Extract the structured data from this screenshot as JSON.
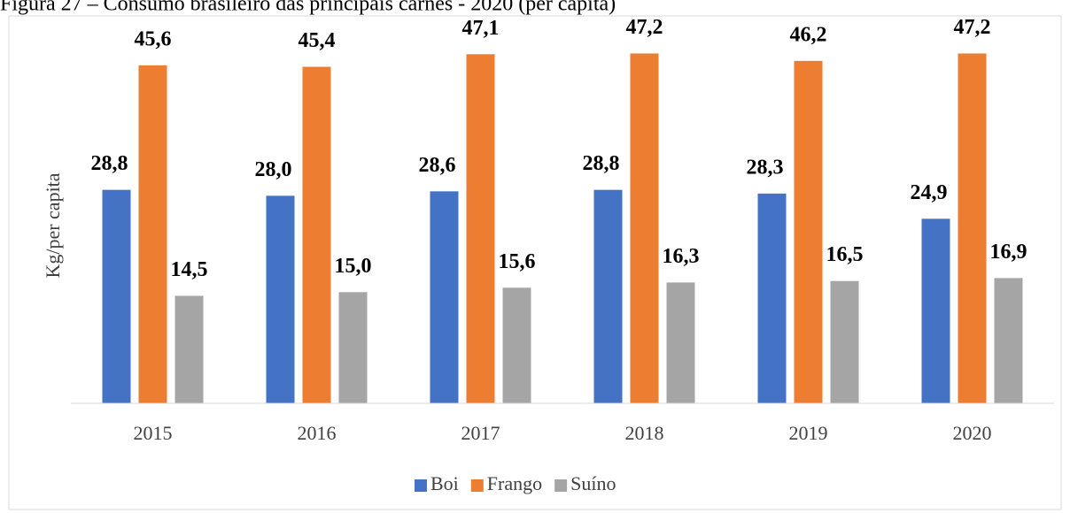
{
  "chart_data": {
    "type": "bar",
    "title": "Figura 27 – Consumo brasileiro das principais carnes - 2020 (per capita)",
    "y_label": "Kg/per capita",
    "categories": [
      "2015",
      "2016",
      "2017",
      "2018",
      "2019",
      "2020"
    ],
    "series": [
      {
        "name": "Boi",
        "color": "#4472c4",
        "values": [
          28.8,
          28.0,
          28.6,
          28.8,
          28.3,
          24.9
        ],
        "value_labels": [
          "28,8",
          "28,0",
          "28,6",
          "28,8",
          "28,3",
          "24,9"
        ]
      },
      {
        "name": "Frango",
        "color": "#ed7d31",
        "values": [
          45.6,
          45.4,
          47.1,
          47.2,
          46.2,
          47.2
        ],
        "value_labels": [
          "45,6",
          "45,4",
          "47,1",
          "47,2",
          "46,2",
          "47,2"
        ]
      },
      {
        "name": "Suíno",
        "color": "#a5a5a5",
        "values": [
          14.5,
          15.0,
          15.6,
          16.3,
          16.5,
          16.9
        ],
        "value_labels": [
          "14,5",
          "15,0",
          "15,6",
          "16,3",
          "16,5",
          "16,9"
        ]
      }
    ],
    "ylim": [
      0,
      50
    ],
    "legend": "bottom"
  }
}
